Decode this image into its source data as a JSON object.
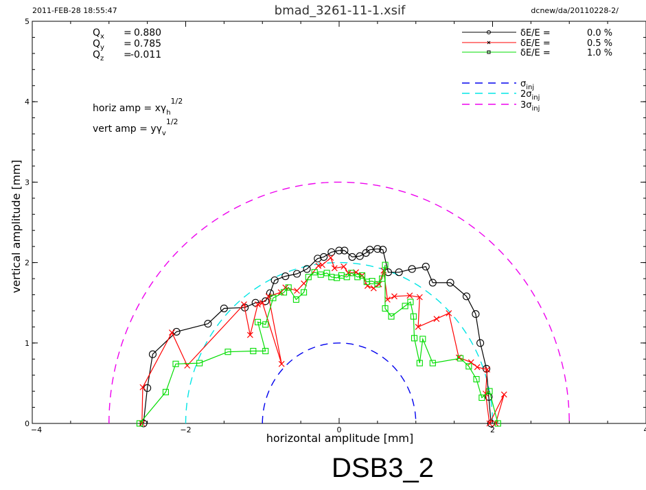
{
  "header": {
    "datetime": "2011-FEB-28 18:55:47",
    "title": "bmad_3261-11-1.xsif",
    "path": "dcnew/da/20110228-2/"
  },
  "tunes": [
    {
      "sym": "Q",
      "sub": "x",
      "eq": "=",
      "val": "0.880"
    },
    {
      "sym": "Q",
      "sub": "y",
      "eq": "=",
      "val": "0.785"
    },
    {
      "sym": "Q",
      "sub": "z",
      "eq": "=",
      "val": "-0.011"
    }
  ],
  "notes": {
    "horiz": {
      "pre": "horiz amp = x",
      "g": "γ",
      "sub": "h",
      "sup": "1/2"
    },
    "vert": {
      "pre": "vert amp = y",
      "g": "γ",
      "sub": "v",
      "sup": "1/2"
    }
  },
  "caption": "DSB3_2",
  "colors": {
    "black": "#000000",
    "red": "#ff0000",
    "green": "#00dd00",
    "blue": "#0000ee",
    "cyan": "#00e5e5",
    "magenta": "#ee00ee"
  },
  "chart_data": {
    "type": "line",
    "xlabel": "horizontal amplitude [mm]",
    "ylabel": "vertical amplitude [mm]",
    "xlim": [
      -4,
      4
    ],
    "ylim": [
      0,
      5
    ],
    "xticks": [
      -4,
      -2,
      0,
      2,
      4
    ],
    "yticks": [
      0,
      1,
      2,
      3,
      4,
      5
    ],
    "xticklabels": [
      "−4",
      "−2",
      "0",
      "2",
      "4"
    ],
    "yticklabels": [
      "0",
      "1",
      "2",
      "3",
      "4",
      "5"
    ],
    "legend": [
      {
        "label": "δE/E =",
        "value": "0.0 %",
        "color": "black",
        "marker": "circle"
      },
      {
        "label": "δE/E =",
        "value": "0.5 %",
        "color": "red",
        "marker": "x"
      },
      {
        "label": "δE/E =",
        "value": "1.0 %",
        "color": "green",
        "marker": "square"
      }
    ],
    "sigma_legend": [
      {
        "prefix": "",
        "sym": "σ",
        "sub": "inj",
        "color": "blue"
      },
      {
        "prefix": "2",
        "sym": "σ",
        "sub": "inj",
        "color": "cyan"
      },
      {
        "prefix": "3",
        "sym": "σ",
        "sub": "inj",
        "color": "magenta"
      }
    ],
    "circles": [
      {
        "radius": 1,
        "color": "blue"
      },
      {
        "radius": 2,
        "color": "cyan"
      },
      {
        "radius": 3,
        "color": "magenta"
      }
    ],
    "series": [
      {
        "name": "δE/E = 0.0 %",
        "color": "black",
        "marker": "circle",
        "points": [
          [
            -2.55,
            0.0
          ],
          [
            -2.5,
            0.44
          ],
          [
            -2.43,
            0.86
          ],
          [
            -2.12,
            1.14
          ],
          [
            -1.71,
            1.24
          ],
          [
            -1.5,
            1.43
          ],
          [
            -1.23,
            1.44
          ],
          [
            -1.09,
            1.5
          ],
          [
            -0.96,
            1.52
          ],
          [
            -0.9,
            1.62
          ],
          [
            -0.84,
            1.78
          ],
          [
            -0.7,
            1.83
          ],
          [
            -0.55,
            1.86
          ],
          [
            -0.42,
            1.92
          ],
          [
            -0.28,
            2.05
          ],
          [
            -0.2,
            2.07
          ],
          [
            -0.1,
            2.13
          ],
          [
            0.0,
            2.15
          ],
          [
            0.07,
            2.15
          ],
          [
            0.17,
            2.07
          ],
          [
            0.27,
            2.08
          ],
          [
            0.35,
            2.12
          ],
          [
            0.4,
            2.16
          ],
          [
            0.5,
            2.17
          ],
          [
            0.57,
            2.16
          ],
          [
            0.64,
            1.88
          ],
          [
            0.78,
            1.88
          ],
          [
            0.95,
            1.92
          ],
          [
            1.13,
            1.95
          ],
          [
            1.22,
            1.75
          ],
          [
            1.45,
            1.75
          ],
          [
            1.66,
            1.58
          ],
          [
            1.78,
            1.36
          ],
          [
            1.84,
            1.0
          ],
          [
            1.92,
            0.68
          ],
          [
            1.95,
            0.33
          ],
          [
            1.98,
            0.0
          ]
        ]
      },
      {
        "name": "δE/E = 0.5 %",
        "color": "red",
        "marker": "x",
        "points": [
          [
            -2.57,
            0.0
          ],
          [
            -2.56,
            0.45
          ],
          [
            -2.18,
            1.13
          ],
          [
            -1.98,
            0.72
          ],
          [
            -1.24,
            1.48
          ],
          [
            -1.16,
            1.1
          ],
          [
            -1.06,
            1.48
          ],
          [
            -1.0,
            1.5
          ],
          [
            -0.75,
            0.74
          ],
          [
            -0.92,
            1.58
          ],
          [
            -0.76,
            1.63
          ],
          [
            -0.7,
            1.69
          ],
          [
            -0.55,
            1.65
          ],
          [
            -0.46,
            1.74
          ],
          [
            -0.27,
            1.96
          ],
          [
            -0.22,
            1.97
          ],
          [
            -0.11,
            2.06
          ],
          [
            -0.06,
            1.93
          ],
          [
            0.06,
            1.95
          ],
          [
            0.12,
            1.87
          ],
          [
            0.22,
            1.88
          ],
          [
            0.3,
            1.84
          ],
          [
            0.37,
            1.71
          ],
          [
            0.45,
            1.68
          ],
          [
            0.52,
            1.73
          ],
          [
            0.58,
            1.9
          ],
          [
            0.63,
            1.54
          ],
          [
            0.72,
            1.58
          ],
          [
            0.92,
            1.59
          ],
          [
            1.05,
            1.57
          ],
          [
            1.03,
            1.2
          ],
          [
            1.27,
            1.3
          ],
          [
            1.43,
            1.37
          ],
          [
            1.56,
            0.82
          ],
          [
            1.72,
            0.76
          ],
          [
            1.8,
            0.7
          ],
          [
            1.93,
            0.67
          ],
          [
            1.91,
            0.37
          ],
          [
            1.96,
            0.0
          ],
          [
            2.15,
            0.36
          ],
          [
            2.04,
            0.0
          ]
        ]
      },
      {
        "name": "δE/E = 1.0 %",
        "color": "green",
        "marker": "square",
        "points": [
          [
            -2.6,
            0.0
          ],
          [
            -2.26,
            0.39
          ],
          [
            -2.13,
            0.74
          ],
          [
            -1.82,
            0.75
          ],
          [
            -1.45,
            0.89
          ],
          [
            -1.12,
            0.9
          ],
          [
            -0.96,
            0.9
          ],
          [
            -1.06,
            1.26
          ],
          [
            -0.96,
            1.23
          ],
          [
            -0.86,
            1.56
          ],
          [
            -0.72,
            1.63
          ],
          [
            -0.66,
            1.69
          ],
          [
            -0.56,
            1.54
          ],
          [
            -0.46,
            1.63
          ],
          [
            -0.4,
            1.82
          ],
          [
            -0.32,
            1.88
          ],
          [
            -0.24,
            1.85
          ],
          [
            -0.16,
            1.87
          ],
          [
            -0.1,
            1.82
          ],
          [
            -0.03,
            1.81
          ],
          [
            0.03,
            1.84
          ],
          [
            0.1,
            1.82
          ],
          [
            0.16,
            1.87
          ],
          [
            0.24,
            1.82
          ],
          [
            0.3,
            1.84
          ],
          [
            0.36,
            1.76
          ],
          [
            0.43,
            1.77
          ],
          [
            0.5,
            1.73
          ],
          [
            0.56,
            1.8
          ],
          [
            0.6,
            1.97
          ],
          [
            0.6,
            1.43
          ],
          [
            0.68,
            1.33
          ],
          [
            0.86,
            1.46
          ],
          [
            0.93,
            1.51
          ],
          [
            0.97,
            1.33
          ],
          [
            0.98,
            1.06
          ],
          [
            1.05,
            0.75
          ],
          [
            1.09,
            1.05
          ],
          [
            1.22,
            0.75
          ],
          [
            1.58,
            0.81
          ],
          [
            1.69,
            0.71
          ],
          [
            1.79,
            0.55
          ],
          [
            1.86,
            0.32
          ],
          [
            1.96,
            0.4
          ],
          [
            2.07,
            0.0
          ]
        ]
      }
    ]
  }
}
